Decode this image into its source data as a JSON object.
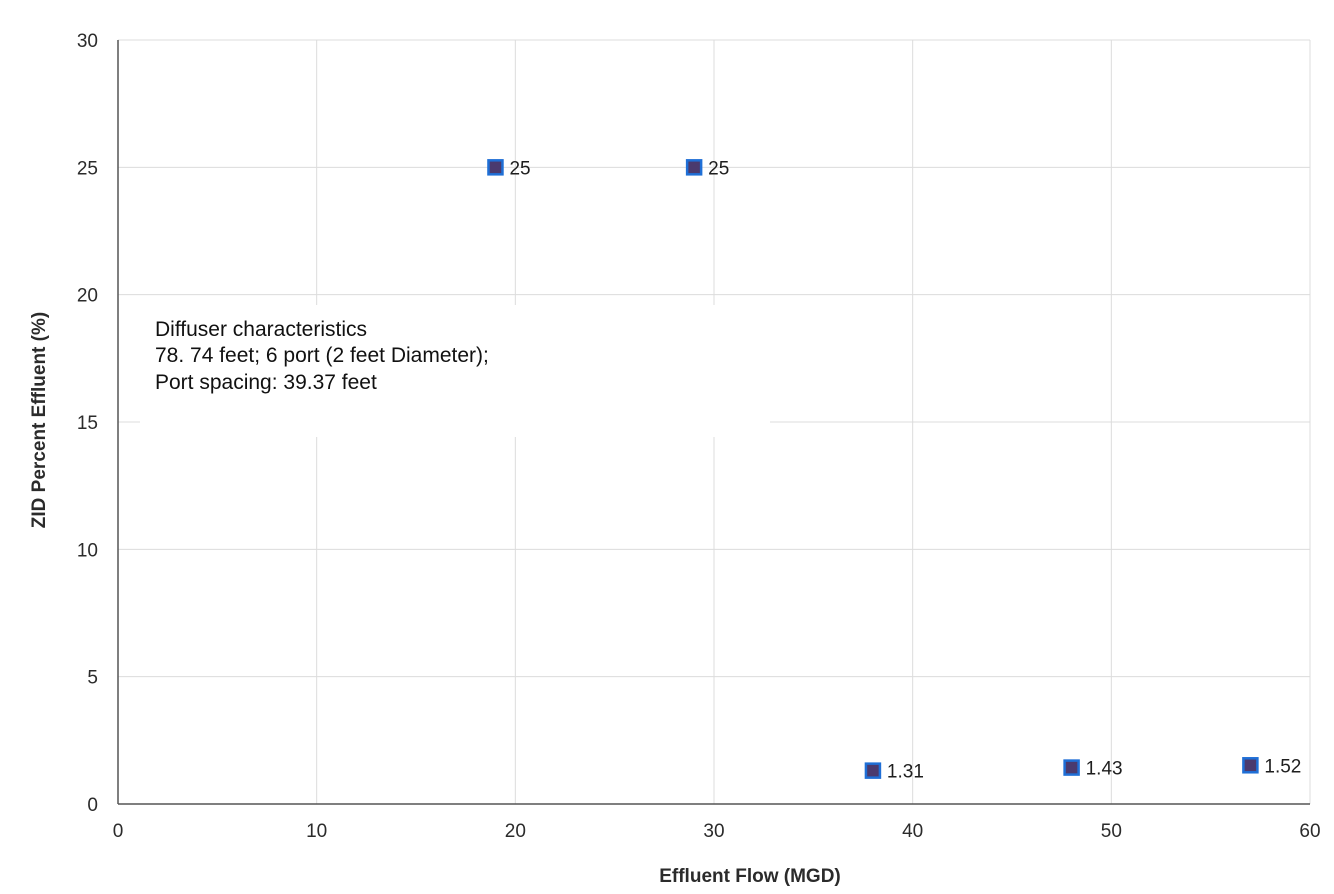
{
  "chart_data": {
    "type": "scatter",
    "xlabel": "Effluent Flow (MGD)",
    "ylabel": "ZID Percent Effluent (%)",
    "xlim": [
      0,
      60
    ],
    "ylim": [
      0,
      30
    ],
    "x_ticks": [
      0,
      10,
      20,
      30,
      40,
      50,
      60
    ],
    "y_ticks": [
      0,
      5,
      10,
      15,
      20,
      25,
      30
    ],
    "grid": true,
    "points": [
      {
        "x": 19,
        "y": 25,
        "label": "25"
      },
      {
        "x": 29,
        "y": 25,
        "label": "25"
      },
      {
        "x": 38,
        "y": 1.31,
        "label": "1.31"
      },
      {
        "x": 48,
        "y": 1.43,
        "label": "1.43"
      },
      {
        "x": 57,
        "y": 1.52,
        "label": "1.52"
      }
    ],
    "annotation": [
      "Diffuser characteristics",
      "78. 74  feet; 6 port (2 feet Diameter);",
      "Port spacing:  39.37 feet"
    ],
    "colors": {
      "marker_fill": "#4a3a6e",
      "marker_edge": "#1f6fd6",
      "grid": "#dcdcdc",
      "axis": "#555555"
    }
  }
}
